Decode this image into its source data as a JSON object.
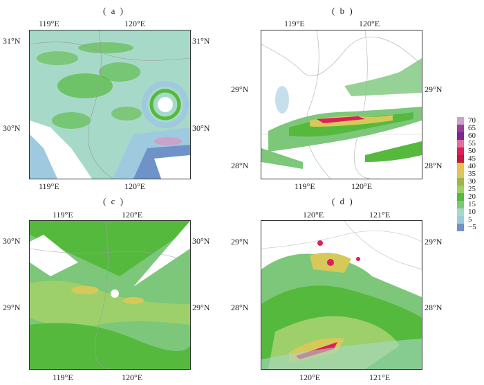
{
  "panels": [
    {
      "id": "a",
      "label": "( a )",
      "top_ticks": [
        "119°E",
        "120°E"
      ],
      "bottom_ticks": [
        "119°E",
        "120°E"
      ],
      "left_ticks": [
        "31°N",
        "30°N"
      ],
      "right_ticks": [
        "31°N",
        "30°N"
      ]
    },
    {
      "id": "b",
      "label": "( b )",
      "top_ticks": [
        "119°E",
        "120°E"
      ],
      "bottom_ticks": [
        "119°E",
        "120°E"
      ],
      "left_ticks": [
        "29°N",
        "28°N"
      ],
      "right_ticks": [
        "29°N",
        "28°N"
      ]
    },
    {
      "id": "c",
      "label": "( c )",
      "top_ticks": [
        "119°E",
        "120°E"
      ],
      "bottom_ticks": [
        "119°E",
        "120°E"
      ],
      "left_ticks": [
        "30°N",
        "29°N"
      ],
      "right_ticks": [
        "30°N",
        "29°N"
      ]
    },
    {
      "id": "d",
      "label": "( d )",
      "top_ticks": [
        "120°E",
        "121°E"
      ],
      "bottom_ticks": [
        "120°E",
        "121°E"
      ],
      "left_ticks": [
        "29°N",
        "28°N"
      ],
      "right_ticks": [
        "29°N",
        "28°N"
      ]
    }
  ],
  "legend": {
    "levels": [
      "70",
      "65",
      "60",
      "55",
      "50",
      "45",
      "40",
      "35",
      "30",
      "25",
      "20",
      "15",
      "10",
      "5",
      "−5"
    ],
    "colors": [
      "#c9a3c9",
      "#9b3d9b",
      "#7a2a8c",
      "#e0709a",
      "#dd1f5c",
      "#c21a3a",
      "#e8c24a",
      "#d7c85a",
      "#a3b34c",
      "#9dd06a",
      "#55b93e",
      "#7cc77a",
      "#a7d9c8",
      "#9ec9de",
      "#6f93c8"
    ]
  }
}
